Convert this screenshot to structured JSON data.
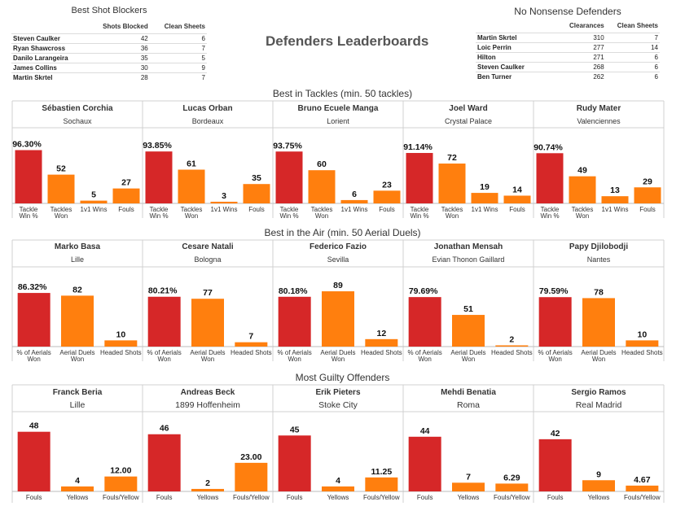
{
  "title": "Defenders Leaderboards",
  "colors": {
    "primary": "#d62728",
    "secondary": "#ff7f0e",
    "sep": "#d0d0d0",
    "axis": "#bbbbbb"
  },
  "blockers": {
    "title": "Best Shot Blockers",
    "columns": [
      "Shots Blocked",
      "Clean Sheets"
    ],
    "rows": [
      {
        "name": "Steven Caulker",
        "a": "42",
        "b": "6"
      },
      {
        "name": "Ryan Shawcross",
        "a": "36",
        "b": "7"
      },
      {
        "name": "Danilo Larangeira",
        "a": "35",
        "b": "5"
      },
      {
        "name": "James Collins",
        "a": "30",
        "b": "9"
      },
      {
        "name": "Martin Skrtel",
        "a": "28",
        "b": "7"
      }
    ]
  },
  "nonsense": {
    "title": "No Nonsense Defenders",
    "columns": [
      "Clearances",
      "Clean Sheets"
    ],
    "rows": [
      {
        "name": "Martin Skrtel",
        "a": "310",
        "b": "7"
      },
      {
        "name": "Loic Perrin",
        "a": "277",
        "b": "14"
      },
      {
        "name": "Hilton",
        "a": "271",
        "b": "6"
      },
      {
        "name": "Steven Caulker",
        "a": "268",
        "b": "6"
      },
      {
        "name": "Ben Turner",
        "a": "262",
        "b": "6"
      }
    ]
  },
  "chart_data": [
    {
      "type": "bar",
      "title": "Best in Tackles (min. 50 tackles)",
      "categories": [
        "Tackle Win %",
        "Tackles Won",
        "1v1 Wins",
        "Fouls"
      ],
      "players": [
        {
          "name": "Sébastien Corchia",
          "club": "Sochaux",
          "values": [
            96.3,
            52,
            5,
            27
          ],
          "labels": [
            "96.30%",
            "52",
            "5",
            "27"
          ]
        },
        {
          "name": "Lucas Orban",
          "club": "Bordeaux",
          "values": [
            93.85,
            61,
            3,
            35
          ],
          "labels": [
            "93.85%",
            "61",
            "3",
            "35"
          ]
        },
        {
          "name": "Bruno Ecuele Manga",
          "club": "Lorient",
          "values": [
            93.75,
            60,
            6,
            23
          ],
          "labels": [
            "93.75%",
            "60",
            "6",
            "23"
          ]
        },
        {
          "name": "Joel Ward",
          "club": "Crystal Palace",
          "values": [
            91.14,
            72,
            19,
            14
          ],
          "labels": [
            "91.14%",
            "72",
            "19",
            "14"
          ]
        },
        {
          "name": "Rudy Mater",
          "club": "Valenciennes",
          "values": [
            90.74,
            49,
            13,
            29
          ],
          "labels": [
            "90.74%",
            "49",
            "13",
            "29"
          ]
        }
      ]
    },
    {
      "type": "bar",
      "title": "Best in the Air (min. 50 Aerial Duels)",
      "categories": [
        "% of Aerials Won",
        "Aerial Duels Won",
        "Headed Shots"
      ],
      "players": [
        {
          "name": "Marko Basa",
          "club": "Lille",
          "values": [
            86.32,
            82,
            10
          ],
          "labels": [
            "86.32%",
            "82",
            "10"
          ]
        },
        {
          "name": "Cesare Natali",
          "club": "Bologna",
          "values": [
            80.21,
            77,
            7
          ],
          "labels": [
            "80.21%",
            "77",
            "7"
          ]
        },
        {
          "name": "Federico Fazio",
          "club": "Sevilla",
          "values": [
            80.18,
            89,
            12
          ],
          "labels": [
            "80.18%",
            "89",
            "12"
          ]
        },
        {
          "name": "Jonathan Mensah",
          "club": "Evian Thonon Gaillard",
          "values": [
            79.69,
            51,
            2
          ],
          "labels": [
            "79.69%",
            "51",
            "2"
          ]
        },
        {
          "name": "Papy Djilobodji",
          "club": "Nantes",
          "values": [
            79.59,
            78,
            10
          ],
          "labels": [
            "79.59%",
            "78",
            "10"
          ]
        }
      ]
    },
    {
      "type": "bar",
      "title": "Most Guilty Offenders",
      "categories": [
        "Fouls",
        "Yellows",
        "Fouls/Yellow"
      ],
      "players": [
        {
          "name": "Franck Beria",
          "club": "Lille",
          "values": [
            48,
            4,
            12.0
          ],
          "labels": [
            "48",
            "4",
            "12.00"
          ]
        },
        {
          "name": "Andreas Beck",
          "club": "1899 Hoffenheim",
          "values": [
            46,
            2,
            23.0
          ],
          "labels": [
            "46",
            "2",
            "23.00"
          ]
        },
        {
          "name": "Erik Pieters",
          "club": "Stoke City",
          "values": [
            45,
            4,
            11.25
          ],
          "labels": [
            "45",
            "4",
            "11.25"
          ]
        },
        {
          "name": "Mehdi Benatia",
          "club": "Roma",
          "values": [
            44,
            7,
            6.29
          ],
          "labels": [
            "44",
            "7",
            "6.29"
          ]
        },
        {
          "name": "Sergio Ramos",
          "club": "Real Madrid",
          "values": [
            42,
            9,
            4.67
          ],
          "labels": [
            "42",
            "9",
            "4.67"
          ]
        }
      ]
    }
  ]
}
